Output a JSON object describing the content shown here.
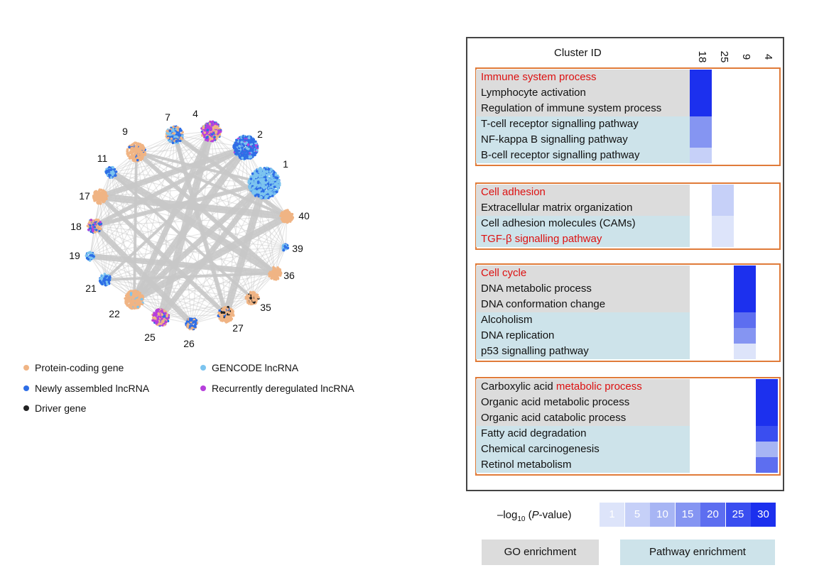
{
  "network": {
    "edge_color": "#c8c8c8",
    "nodes": [
      {
        "label": "1",
        "composition": {
          "gencode": 0.7,
          "new": 0.3
        }
      },
      {
        "label": "2",
        "composition": {
          "new": 0.7,
          "gencode": 0.2,
          "recurrent": 0.1
        }
      },
      {
        "label": "4",
        "composition": {
          "recurrent": 0.5,
          "new": 0.2,
          "protein": 0.3
        }
      },
      {
        "label": "7",
        "composition": {
          "protein": 0.3,
          "new": 0.4,
          "gencode": 0.3
        }
      },
      {
        "label": "9",
        "composition": {
          "protein": 0.9,
          "new": 0.1
        }
      },
      {
        "label": "11",
        "composition": {
          "new": 0.5,
          "gencode": 0.5
        }
      },
      {
        "label": "17",
        "composition": {
          "protein": 1.0
        }
      },
      {
        "label": "18",
        "composition": {
          "protein": 0.6,
          "new": 0.2,
          "recurrent": 0.2
        }
      },
      {
        "label": "19",
        "composition": {
          "new": 0.5,
          "gencode": 0.5
        }
      },
      {
        "label": "21",
        "composition": {
          "new": 0.7,
          "gencode": 0.3
        }
      },
      {
        "label": "22",
        "composition": {
          "protein": 0.9,
          "gencode": 0.1
        }
      },
      {
        "label": "25",
        "composition": {
          "recurrent": 0.5,
          "protein": 0.4,
          "new": 0.1
        }
      },
      {
        "label": "26",
        "composition": {
          "new": 0.6,
          "protein": 0.4
        }
      },
      {
        "label": "27",
        "composition": {
          "protein": 0.8,
          "new": 0.1,
          "driver": 0.1
        }
      },
      {
        "label": "35",
        "composition": {
          "protein": 0.8,
          "driver": 0.2
        }
      },
      {
        "label": "36",
        "composition": {
          "protein": 1.0
        }
      },
      {
        "label": "39",
        "composition": {
          "new": 0.5,
          "gencode": 0.5
        }
      },
      {
        "label": "40",
        "composition": {
          "protein": 1.0
        }
      }
    ]
  },
  "legend": {
    "items": [
      {
        "label": "Protein-coding gene",
        "color": "#f0b484"
      },
      {
        "label": "GENCODE lncRNA",
        "color": "#7cc4ef"
      },
      {
        "label": "Newly assembled lncRNA",
        "color": "#2e6ee6"
      },
      {
        "label": "Recurrently deregulated lncRNA",
        "color": "#b63fdc"
      },
      {
        "label": "Driver gene",
        "color": "#222222"
      }
    ]
  },
  "heatmap": {
    "title": "Cluster ID",
    "columns": [
      "18",
      "25",
      "9",
      "4"
    ],
    "groups": [
      {
        "rows": [
          {
            "label": "Immune system process",
            "type": "go",
            "red": true,
            "col": 0,
            "level": 30
          },
          {
            "label": "Lymphocyte activation",
            "type": "go",
            "col": 0,
            "level": 30
          },
          {
            "label": "Regulation of immune system process",
            "type": "go",
            "col": 0,
            "level": 30
          },
          {
            "label": "T-cell receptor signalling pathway",
            "type": "pw",
            "col": 0,
            "level": 15
          },
          {
            "label": "NF-kappa B signalling pathway",
            "type": "pw",
            "col": 0,
            "level": 15
          },
          {
            "label": "B-cell receptor signalling pathway",
            "type": "pw",
            "col": 0,
            "level": 5
          }
        ]
      },
      {
        "rows": [
          {
            "label": "Cell adhesion",
            "type": "go",
            "red": true,
            "col": 1,
            "level": 5
          },
          {
            "label": "Extracellular matrix organization",
            "type": "go",
            "col": 1,
            "level": 5
          },
          {
            "label": "Cell adhesion molecules (CAMs)",
            "type": "pw",
            "col": 1,
            "level": 1
          },
          {
            "label": "TGF-β signalling pathway",
            "type": "pw",
            "red": true,
            "col": 1,
            "level": 1
          }
        ]
      },
      {
        "rows": [
          {
            "label": "Cell cycle",
            "type": "go",
            "red": true,
            "col": 2,
            "level": 30
          },
          {
            "label": "DNA metabolic process",
            "type": "go",
            "col": 2,
            "level": 30
          },
          {
            "label": "DNA conformation change",
            "type": "go",
            "col": 2,
            "level": 30
          },
          {
            "label": "Alcoholism",
            "type": "pw",
            "col": 2,
            "level": 20
          },
          {
            "label": "DNA replication",
            "type": "pw",
            "col": 2,
            "level": 15
          },
          {
            "label": "p53 signalling pathway",
            "type": "pw",
            "col": 2,
            "level": 1
          }
        ]
      },
      {
        "rows": [
          {
            "label_pre": "Carboxylic acid ",
            "label_red": "metabolic process",
            "type": "go",
            "col": 3,
            "level": 30
          },
          {
            "label": "Organic acid metabolic process",
            "type": "go",
            "col": 3,
            "level": 30
          },
          {
            "label": "Organic acid catabolic process",
            "type": "go",
            "col": 3,
            "level": 30
          },
          {
            "label": "Fatty acid degradation",
            "type": "pw",
            "col": 3,
            "level": 25
          },
          {
            "label": "Chemical carcinogenesis",
            "type": "pw",
            "col": 3,
            "level": 10
          },
          {
            "label": "Retinol metabolism",
            "type": "pw",
            "col": 3,
            "level": 20
          }
        ]
      }
    ]
  },
  "scale": {
    "label_pre": "–log",
    "label_sub": "10",
    "label_mid": " (",
    "label_italic": "P",
    "label_post": "-value)",
    "steps": [
      {
        "value": "1",
        "color": "#dde4fa"
      },
      {
        "value": "5",
        "color": "#c6d0f8"
      },
      {
        "value": "10",
        "color": "#a7b5f4"
      },
      {
        "value": "15",
        "color": "#8595f2"
      },
      {
        "value": "20",
        "color": "#5d6ef0"
      },
      {
        "value": "25",
        "color": "#3a4ef0"
      },
      {
        "value": "30",
        "color": "#1c30ee"
      }
    ]
  },
  "key": {
    "go": {
      "label": "GO enrichment",
      "color": "#dcdcdc"
    },
    "pathway": {
      "label": "Pathway enrichment",
      "color": "#cde3ea"
    }
  }
}
